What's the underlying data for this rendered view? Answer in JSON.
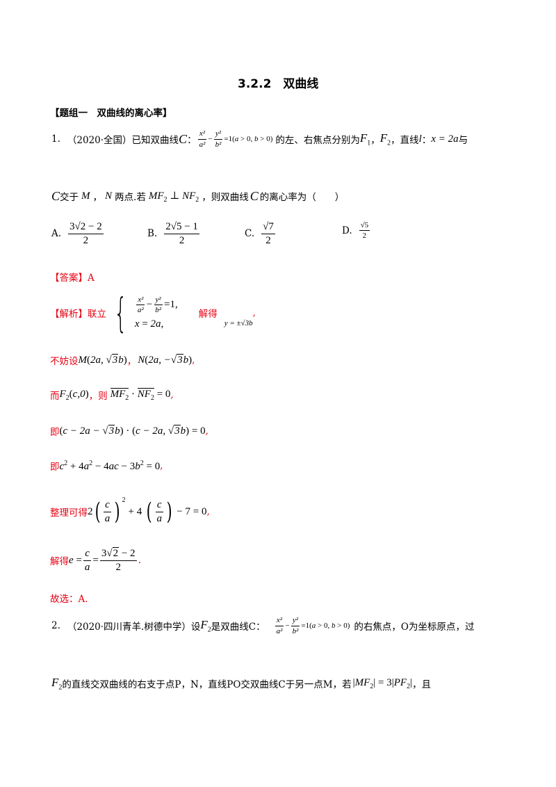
{
  "doc": {
    "title": "3.2.2　双曲线",
    "group": "【题组一　双曲线的离心率】"
  },
  "q1": {
    "num": "1.",
    "source": "（2020·全国）已知双曲线",
    "mid1": "的左、右焦点分别为",
    "mid2": "，直线",
    "eq_line": "x = 2a",
    "tail1": "与",
    "line2_a": "交于",
    "line2_b": "两点.若",
    "line2_c": "，则双曲线",
    "line2_d": "的离心率为（　　）",
    "options": [
      {
        "label": "A.",
        "num": "3√2 − 2",
        "den": "2"
      },
      {
        "label": "B.",
        "num": "2√5 − 1",
        "den": "2"
      },
      {
        "label": "C.",
        "num": "√7",
        "den": "2"
      },
      {
        "label": "D.",
        "num": "√5",
        "den": "2"
      }
    ],
    "answer": "【答案】A",
    "analysis_label": "【解析】联立",
    "solve_label": "解得",
    "solve_value": "y = ±√3b",
    "step_suppose": "不妨设",
    "step_then_prefix": "而",
    "step_then_mid": "，则",
    "step_ji": "即",
    "step_ji2": "即",
    "step_arrange": "整理可得",
    "step_solve": "解得",
    "choose": "故选：A."
  },
  "q2": {
    "num": "2.",
    "source": "（2020·四川青羊.树德中学）设",
    "mid1": "是双曲线C：",
    "mid2": "的右焦点，O为坐标原点，过",
    "line2": "的直线交双曲线的右支于点P，N，直线PO交双曲线C于另一点M，若",
    "line2_tail": "，且"
  }
}
